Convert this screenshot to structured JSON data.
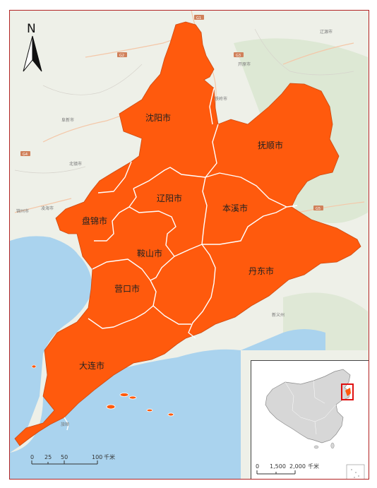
{
  "north_arrow": {
    "label": "N"
  },
  "colors": {
    "region_fill": "#ff5a0d",
    "boundary": "#ffffff",
    "sea": "#aad3ee",
    "land": "#eef0e8",
    "frame": "#b22222"
  },
  "cities": {
    "shenyang": "沈阳市",
    "fushun": "抚顺市",
    "liaoyang": "辽阳市",
    "benxi": "本溪市",
    "panjin": "盘锦市",
    "anshan": "鞍山市",
    "dandong": "丹东市",
    "yingkou": "营口市",
    "dalian": "大连市"
  },
  "basemap_labels": {
    "liaoyuan": "辽源市",
    "kaiyuan": "开原市",
    "tieling": "铁岭市",
    "fuxin": "阜新市",
    "beizhen": "北镇市",
    "jinzhou": "锦州市",
    "linghai": "凌海市",
    "xinyi": "新义州",
    "lvshun": "旅顺",
    "road_g1": "G1",
    "road_g2": "G2",
    "road_g3": "G3",
    "road_g4": "G4",
    "road_g5": "G5"
  },
  "scale_bar": {
    "ticks": [
      "0",
      "25",
      "50",
      "100"
    ],
    "unit": "千米"
  },
  "inset": {
    "scale_ticks": [
      "0",
      "1,500",
      "2,000"
    ],
    "unit": "千米"
  }
}
